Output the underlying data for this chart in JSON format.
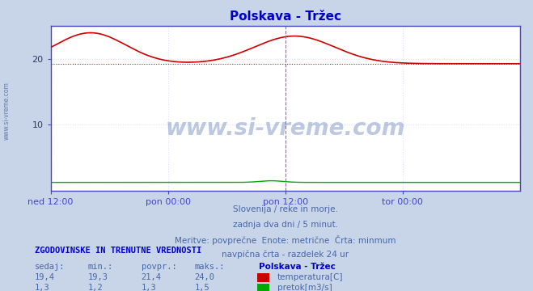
{
  "title": "Polskava - Tržec",
  "title_color": "#0000cc",
  "bg_color": "#c8d4e8",
  "plot_bg_color": "#ffffff",
  "plot_border_color": "#4444cc",
  "grid_color": "#ddddff",
  "grid_style": "dotted",
  "xlabel_ticks": [
    "ned 12:00",
    "pon 00:00",
    "pon 12:00",
    "tor 00:00"
  ],
  "ylim": [
    0,
    25
  ],
  "yticks": [
    10,
    20
  ],
  "temp_color": "#cc0000",
  "pretok_color": "#00aa00",
  "min_line_color": "#cc0000",
  "vline_color": "#cc44cc",
  "vline_positions": [
    0.5,
    1.0
  ],
  "temp_min": 19.3,
  "temp_max": 24.0,
  "pretok_min": 1.2,
  "pretok_max": 1.5,
  "watermark_text": "www.si-vreme.com",
  "watermark_color": "#4466aa",
  "watermark_alpha": 0.35,
  "caption_lines": [
    "Slovenija / reke in morje.",
    "zadnja dva dni / 5 minut.",
    "Meritve: povprečne  Enote: metrične  Črta: minmum",
    "navpična črta - razdelek 24 ur"
  ],
  "caption_color": "#4466aa",
  "table_header": "ZGODOVINSKE IN TRENUTNE VREDNOSTI",
  "table_color": "#0000cc",
  "col_headers": [
    "sedaj:",
    "min.:",
    "povpr.:",
    "maks.:"
  ],
  "col_header_color": "#4466aa",
  "station_label": "Polskava - Tržec",
  "station_color": "#0000cc",
  "row1_vals": [
    "19,4",
    "19,3",
    "21,4",
    "24,0"
  ],
  "row2_vals": [
    "1,3",
    "1,2",
    "1,3",
    "1,5"
  ],
  "row1_label": "temperatura[C]",
  "row2_label": "pretok[m3/s]",
  "val_color": "#4466aa",
  "left_label": "www.si-vreme.com",
  "left_label_color": "#4466aa"
}
